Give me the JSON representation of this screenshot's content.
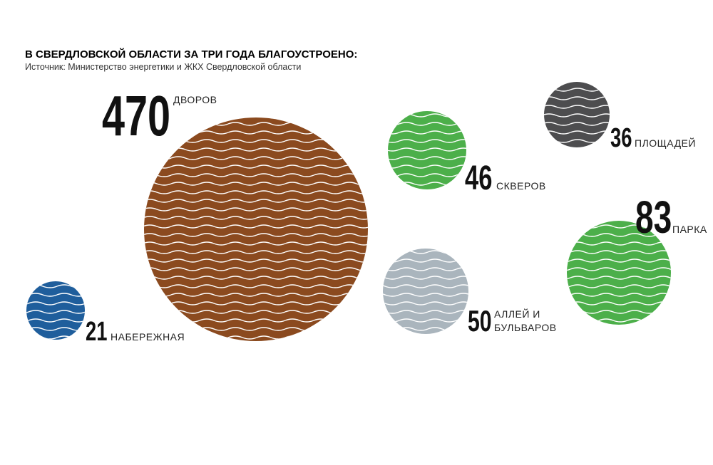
{
  "chart_data": {
    "type": "bubble",
    "title": "В СВЕРДЛОВСКОЙ ОБЛАСТИ ЗА ТРИ ГОДА БЛАГОУСТРОЕНО:",
    "subtitle": "Источник: Министерство энергетики и ЖКХ Свердловской области",
    "categories": [
      [
        "ДВОРОВ"
      ],
      [
        "НАБЕРЕЖНАЯ"
      ],
      [
        "СКВЕРОВ"
      ],
      [
        "ПЛОЩАДЕЙ"
      ],
      [
        "АЛЛЕЙ И",
        "БУЛЬВАРОВ"
      ],
      [
        "ПАРКА"
      ]
    ],
    "values": [
      470,
      21,
      46,
      36,
      50,
      83
    ],
    "colors": [
      "#8b4a1f",
      "#1f5e9c",
      "#4caf4a",
      "#4d4d4f",
      "#aab5bd",
      "#4caf4a"
    ]
  }
}
